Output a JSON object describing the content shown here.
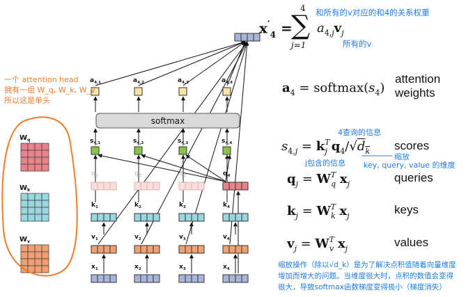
{
  "annotations": {
    "head_note": [
      "一个 attention head",
      "拥有一组 W_q, W_k, W_v",
      "所以这是单头"
    ],
    "top_right_note": "和所有的v对应的和4的关系权重",
    "all_v_note": "所有的v",
    "query_info": "4查询的信息",
    "key_info": "j包含的信息",
    "scale_note": "缩放",
    "scale_dim_note": "key, query, value 的维度",
    "bottom_note": [
      "缩放操作（除以√d_k）是为了解决点积值随着向量维度",
      "增加而增大的问题。当维度很大时，点积的数值会变得",
      "很大，导致softmax函数梯度变得极小（梯度消失）"
    ]
  },
  "diagram": {
    "softmax_label": "softmax",
    "weights": [
      {
        "name": "W",
        "sub": "q"
      },
      {
        "name": "W",
        "sub": "k"
      },
      {
        "name": "W",
        "sub": "v"
      }
    ],
    "a_labels": [
      {
        "b": "a",
        "s": "4,1"
      },
      {
        "b": "a",
        "s": "4,2"
      },
      {
        "b": "a",
        "s": "4,3"
      },
      {
        "b": "a",
        "s": "4,4"
      }
    ],
    "s_labels": [
      {
        "b": "s",
        "s": "4,1"
      },
      {
        "b": "s",
        "s": "4,2"
      },
      {
        "b": "s",
        "s": "4,3"
      },
      {
        "b": "s",
        "s": "4,4"
      }
    ],
    "q_labels": [
      {
        "b": "q",
        "s": "1"
      },
      {
        "b": "q",
        "s": "2"
      },
      {
        "b": "q",
        "s": "3"
      },
      {
        "b": "q",
        "s": "4"
      }
    ],
    "k_labels": [
      {
        "b": "k",
        "s": "1"
      },
      {
        "b": "k",
        "s": "2"
      },
      {
        "b": "k",
        "s": "3"
      },
      {
        "b": "k",
        "s": "4"
      }
    ],
    "v_labels": [
      {
        "b": "v",
        "s": "1"
      },
      {
        "b": "v",
        "s": "2"
      },
      {
        "b": "v",
        "s": "3"
      },
      {
        "b": "v",
        "s": "4"
      }
    ],
    "x_labels": [
      {
        "b": "x",
        "s": "1"
      },
      {
        "b": "x",
        "s": "2"
      },
      {
        "b": "x",
        "s": "3"
      },
      {
        "b": "x",
        "s": "4"
      }
    ],
    "colors": {
      "q": "#e8838a",
      "q_faded": "#f6dede",
      "k": "#9ad6de",
      "v": "#f0a070",
      "x": "#a8b4d8",
      "a": "#fbe3a8",
      "s": "#8bc34a",
      "out": "#a8b4d8"
    }
  },
  "equations": {
    "attention_word": "attention",
    "weights_word": "weights",
    "scores_word": "scores",
    "queries_word": "queries",
    "keys_word": "keys",
    "values_word": "values"
  }
}
